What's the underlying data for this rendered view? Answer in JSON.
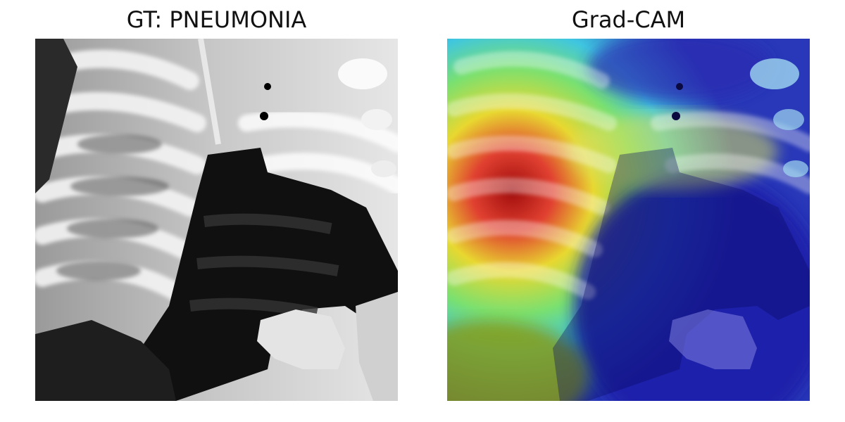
{
  "panels": [
    {
      "title": "GT: PNEUMONIA",
      "image": "chest-xray-grayscale"
    },
    {
      "title": "Grad-CAM",
      "image": "chest-xray-gradcam-heatmap-overlay"
    }
  ],
  "colors": {
    "background": "#ffffff",
    "heat_high": "#b01010",
    "heat_mid": "#e8e030",
    "heat_low": "#1a1a9a",
    "heat_cool": "#40c8e0"
  }
}
